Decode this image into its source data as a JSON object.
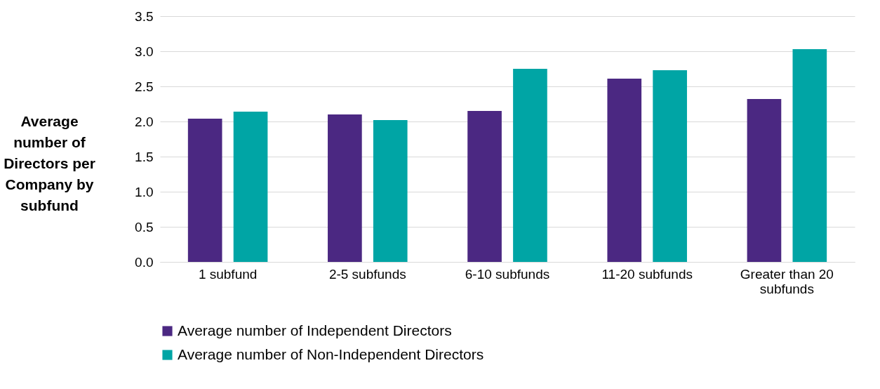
{
  "chart_data": {
    "type": "bar",
    "ylabel": "Average number of Directors per Company by subfund",
    "categories": [
      "1 subfund",
      "2-5 subfunds",
      "6-10 subfunds",
      "11-20 subfunds",
      "Greater than 20 subfunds"
    ],
    "series": [
      {
        "name": "Average number of Independent Directors",
        "color": "#4b2882",
        "values": [
          2.04,
          2.1,
          2.15,
          2.61,
          2.32
        ]
      },
      {
        "name": "Average number of Non-Independent Directors",
        "color": "#00a5a5",
        "values": [
          2.14,
          2.02,
          2.75,
          2.73,
          3.03
        ]
      }
    ],
    "ylim": [
      0,
      3.5
    ],
    "yticks": [
      {
        "value": 0,
        "label": "0.0"
      },
      0.5,
      {
        "value": 1,
        "label": "1.0"
      },
      1.5,
      {
        "value": 2,
        "label": "2.0"
      },
      2.5,
      {
        "value": 3,
        "label": "3.0"
      },
      3.5
    ],
    "grid": "y",
    "legend": "bottom"
  }
}
